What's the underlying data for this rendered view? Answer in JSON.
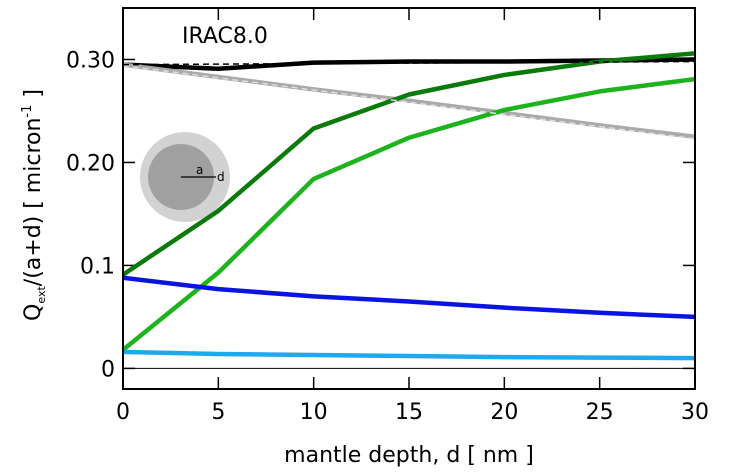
{
  "chart_data": {
    "type": "line",
    "annotation": "IRAC8.0",
    "x_label": "mantle depth, d [ nm ]",
    "y_label": {
      "q": "Q",
      "sub": "ext",
      "main": "/(a+d) [ micron",
      "sup": "-1",
      "end": " ]"
    },
    "inset_labels": [
      "a",
      "d"
    ],
    "xlim": [
      0,
      30
    ],
    "ylim": [
      -0.02,
      0.35
    ],
    "xticks": [
      0,
      5,
      10,
      15,
      20,
      25,
      30
    ],
    "yticks": [
      0,
      0.1,
      {
        "value": 0.2,
        "label": "0.20"
      },
      {
        "value": 0.3,
        "label": "0.30"
      }
    ],
    "series": [
      {
        "color": "#000000",
        "x": [
          0,
          5,
          10,
          15,
          20,
          25,
          30
        ],
        "values": [
          0.295,
          0.291,
          0.297,
          0.298,
          0.298,
          0.299,
          0.3
        ]
      },
      {
        "color": "#aaaaaa",
        "x": [
          0,
          5,
          10,
          15,
          20,
          25,
          30
        ],
        "values": [
          0.295,
          0.283,
          0.271,
          0.26,
          0.248,
          0.236,
          0.225
        ]
      },
      {
        "color": "#0a7a0a",
        "x": [
          0,
          5,
          10,
          15,
          20,
          25,
          30
        ],
        "values": [
          0.091,
          0.153,
          0.233,
          0.266,
          0.285,
          0.298,
          0.306
        ]
      },
      {
        "color": "#1db31d",
        "x": [
          0,
          5,
          10,
          15,
          20,
          25,
          30
        ],
        "values": [
          0.018,
          0.093,
          0.184,
          0.224,
          0.251,
          0.269,
          0.281
        ]
      },
      {
        "color": "#0a14e0",
        "x": [
          0,
          5,
          10,
          15,
          20,
          25,
          30
        ],
        "values": [
          0.088,
          0.077,
          0.07,
          0.065,
          0.059,
          0.054,
          0.05
        ]
      },
      {
        "color": "#1ea8ee",
        "x": [
          0,
          5,
          10,
          15,
          20,
          25,
          30
        ],
        "values": [
          0.016,
          0.014,
          0.013,
          0.012,
          0.011,
          0.0105,
          0.01
        ]
      },
      {
        "color": "#dddddd",
        "dashed": true,
        "x": [
          0,
          30
        ],
        "values": [
          0.294,
          0.223
        ]
      },
      {
        "color": "#000000",
        "dashed": true,
        "x": [
          0,
          30
        ],
        "values": [
          0.295,
          0.298
        ]
      }
    ]
  }
}
